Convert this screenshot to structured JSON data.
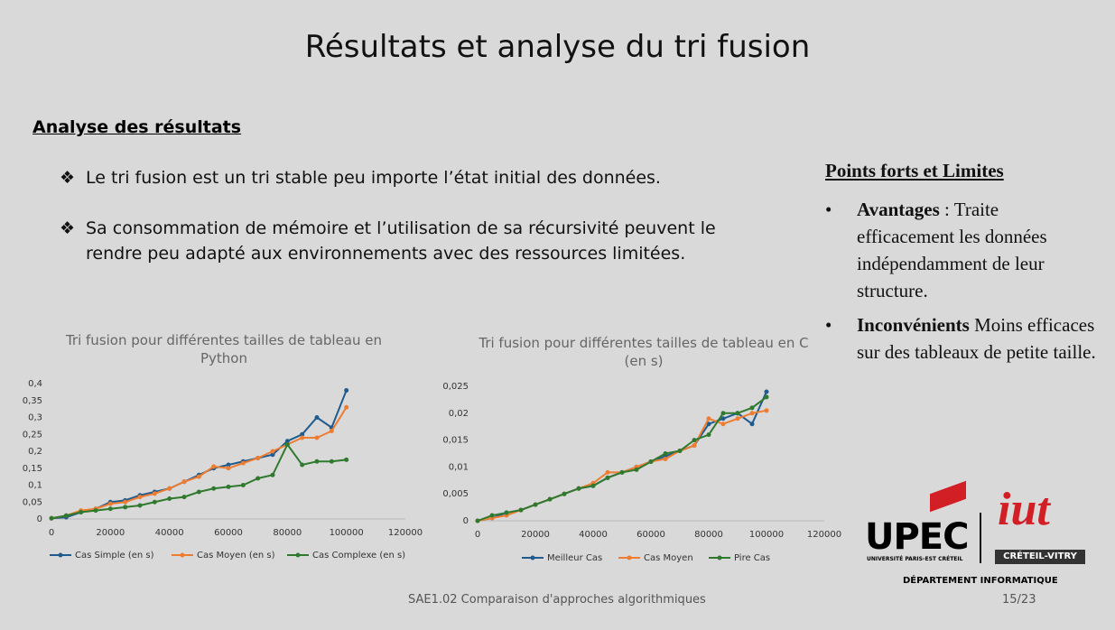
{
  "slide": {
    "title": "Résultats et analyse du tri fusion",
    "section": "Analyse des résultats",
    "bullets": [
      "Le tri fusion est un tri stable peu importe l’état initial des données.",
      "Sa consommation de mémoire et l’utilisation de sa récursivité peuvent le rendre peu adapté aux environnements avec des ressources limitées."
    ],
    "panel": {
      "title": "Points forts et Limites",
      "items": [
        {
          "term": "Avantages",
          "text": ": Traite efficacement les données indépendamment de leur structure."
        },
        {
          "term": "Inconvénients",
          "text": "Moins efficaces sur des tableaux de petite taille."
        }
      ]
    },
    "logo": {
      "name": "UPEC",
      "university": "UNIVERSITÉ PARIS-EST CRÉTEIL",
      "iut": "iut",
      "campus": "CRÉTEIL-VITRY",
      "department": "DÉPARTEMENT INFORMATIQUE"
    },
    "footer": "SAE1.02 Comparaison d'approches algorithmiques",
    "page": "15/23"
  },
  "chart_data": [
    {
      "type": "line",
      "title": "Tri fusion pour différentes tailles de tableau en Python",
      "x": [
        0,
        5000,
        10000,
        15000,
        20000,
        25000,
        30000,
        35000,
        40000,
        45000,
        50000,
        55000,
        60000,
        65000,
        70000,
        75000,
        80000,
        85000,
        90000,
        95000,
        100000
      ],
      "xlim": [
        0,
        120000
      ],
      "xticks": [
        0,
        20000,
        40000,
        60000,
        80000,
        100000,
        120000
      ],
      "ylim": [
        0,
        0.4
      ],
      "yticks": [
        0,
        {
          "value": 0.05,
          "label": "0,05"
        },
        {
          "value": 0.1,
          "label": "0,1"
        },
        {
          "value": 0.15,
          "label": "0,15"
        },
        {
          "value": 0.2,
          "label": "0,2"
        },
        {
          "value": 0.25,
          "label": "0,25"
        },
        {
          "value": 0.3,
          "label": "0,3"
        },
        {
          "value": 0.35,
          "label": "0,35"
        },
        {
          "value": 0.4,
          "label": "0,4"
        }
      ],
      "grid": false,
      "legend": "bottom",
      "series": [
        {
          "name": "Cas Simple (en s)",
          "color": "#1f5b8e",
          "values": [
            0.002,
            0.005,
            0.02,
            0.03,
            0.05,
            0.055,
            0.07,
            0.08,
            0.09,
            0.11,
            0.13,
            0.15,
            0.16,
            0.17,
            0.18,
            0.19,
            0.23,
            0.25,
            0.3,
            0.27,
            0.38
          ]
        },
        {
          "name": "Cas Moyen (en s)",
          "color": "#ee7d31",
          "values": [
            0.002,
            0.01,
            0.025,
            0.03,
            0.045,
            0.05,
            0.065,
            0.075,
            0.09,
            0.11,
            0.125,
            0.155,
            0.15,
            0.165,
            0.18,
            0.2,
            0.22,
            0.24,
            0.24,
            0.26,
            0.33
          ]
        },
        {
          "name": "Cas Complexe (en s)",
          "color": "#2f7a2f",
          "values": [
            0.002,
            0.01,
            0.02,
            0.025,
            0.03,
            0.035,
            0.04,
            0.05,
            0.06,
            0.065,
            0.08,
            0.09,
            0.095,
            0.1,
            0.12,
            0.13,
            0.22,
            0.16,
            0.17,
            0.17,
            0.175
          ]
        }
      ]
    },
    {
      "type": "line",
      "title": "Tri fusion pour différentes tailles de tableau en C (en s)",
      "x": [
        0,
        5000,
        10000,
        15000,
        20000,
        25000,
        30000,
        35000,
        40000,
        45000,
        50000,
        55000,
        60000,
        65000,
        70000,
        75000,
        80000,
        85000,
        90000,
        95000,
        100000
      ],
      "xlim": [
        0,
        120000
      ],
      "xticks": [
        0,
        20000,
        40000,
        60000,
        80000,
        100000,
        120000
      ],
      "ylim": [
        0,
        0.025
      ],
      "yticks": [
        0,
        {
          "value": 0.005,
          "label": "0,005"
        },
        {
          "value": 0.01,
          "label": "0,01"
        },
        {
          "value": 0.015,
          "label": "0,015"
        },
        {
          "value": 0.02,
          "label": "0,02"
        },
        {
          "value": 0.025,
          "label": "0,025"
        }
      ],
      "grid": false,
      "legend": "bottom",
      "series": [
        {
          "name": "Meilleur Cas",
          "color": "#1f5b8e",
          "values": [
            0,
            0.0005,
            0.0015,
            0.002,
            0.003,
            0.004,
            0.005,
            0.006,
            0.0065,
            0.008,
            0.009,
            0.01,
            0.011,
            0.012,
            0.013,
            0.014,
            0.018,
            0.019,
            0.02,
            0.018,
            0.024
          ]
        },
        {
          "name": "Cas Moyen",
          "color": "#ee7d31",
          "values": [
            0,
            0.0005,
            0.001,
            0.002,
            0.003,
            0.004,
            0.005,
            0.006,
            0.007,
            0.009,
            0.009,
            0.01,
            0.011,
            0.0115,
            0.013,
            0.014,
            0.019,
            0.018,
            0.019,
            0.02,
            0.0205
          ]
        },
        {
          "name": "Pire Cas",
          "color": "#2f7a2f",
          "values": [
            0,
            0.001,
            0.0015,
            0.002,
            0.003,
            0.004,
            0.005,
            0.006,
            0.0065,
            0.008,
            0.009,
            0.0095,
            0.011,
            0.0125,
            0.013,
            0.015,
            0.016,
            0.02,
            0.02,
            0.021,
            0.023
          ]
        }
      ]
    }
  ]
}
